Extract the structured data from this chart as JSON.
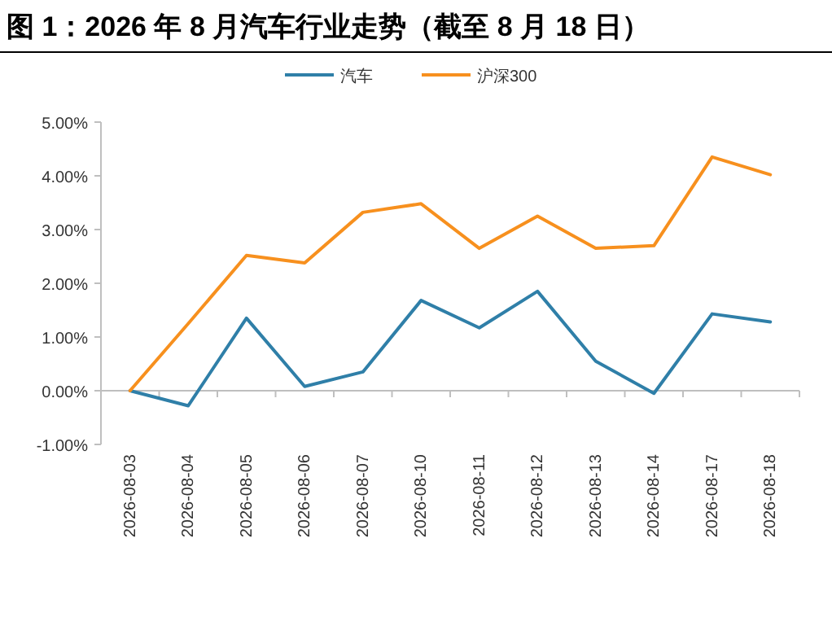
{
  "chart_data": {
    "type": "line",
    "title": "图 1：2026 年 8 月汽车行业走势（截至 8 月 18 日）",
    "categories": [
      "2026-08-03",
      "2026-08-04",
      "2026-08-05",
      "2026-08-06",
      "2026-08-07",
      "2026-08-10",
      "2026-08-11",
      "2026-08-12",
      "2026-08-13",
      "2026-08-14",
      "2026-08-17",
      "2026-08-18"
    ],
    "series": [
      {
        "name": "汽车",
        "color": "#2f7fa8",
        "values": [
          0,
          -0.28,
          1.35,
          0.08,
          0.35,
          1.68,
          1.17,
          1.85,
          0.55,
          -0.05,
          1.43,
          1.28
        ]
      },
      {
        "name": "沪深300",
        "color": "#f7901e",
        "values": [
          0,
          1.25,
          2.52,
          2.38,
          3.32,
          3.48,
          2.65,
          3.25,
          2.65,
          2.7,
          4.35,
          4.02
        ]
      }
    ],
    "ylim": [
      -1,
      5
    ],
    "yticks": [
      {
        "value": -1,
        "label": "-1.00%"
      },
      {
        "value": 0,
        "label": "0.00%"
      },
      {
        "value": 1,
        "label": "1.00%"
      },
      {
        "value": 2,
        "label": "2.00%"
      },
      {
        "value": 3,
        "label": "3.00%"
      },
      {
        "value": 4,
        "label": "4.00%"
      },
      {
        "value": 5,
        "label": "5.00%"
      }
    ],
    "legend": "top",
    "marker": "none",
    "line_style": "solid"
  }
}
